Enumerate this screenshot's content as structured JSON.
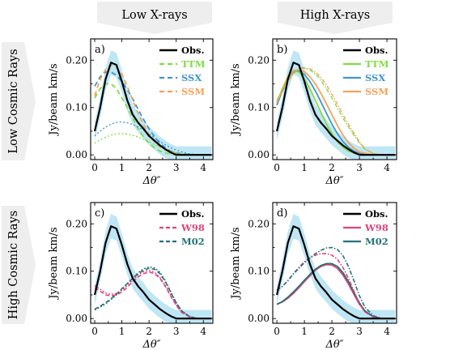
{
  "columns": [
    "Low X-rays",
    "High X-rays"
  ],
  "rows": [
    "Low Cosmic Rays",
    "High Cosmic Rays"
  ],
  "colors": {
    "band": "#bfe6f5",
    "obs": "#000000",
    "ttm": "#7ede3f",
    "ssx": "#3f97c8",
    "ssm": "#f5a25a",
    "w98": "#e0457a",
    "m02": "#23717a"
  },
  "chart_data": [
    {
      "type": "line",
      "panel": "a)",
      "ylabel": "Jy/beam km/s",
      "xlabel": "Δθ″",
      "xlim": [
        -0.15,
        4.35
      ],
      "ylim": [
        -0.01,
        0.245
      ],
      "xticks": [
        "0",
        "1",
        "2",
        "3",
        "4"
      ],
      "yticks": [
        "0.00",
        "0.10",
        "0.20"
      ],
      "legend": [
        "Obs.",
        "TTM",
        "SSX",
        "SSM"
      ],
      "series": [
        {
          "name": "Obs.",
          "x": [
            0,
            0.2,
            0.4,
            0.6,
            0.8,
            1.0,
            1.2,
            1.4,
            1.6,
            1.8,
            2.0,
            2.2,
            2.4,
            2.6,
            2.8,
            3.0,
            3.3,
            3.6,
            4.0,
            4.3
          ],
          "y": [
            0.05,
            0.1,
            0.16,
            0.195,
            0.19,
            0.155,
            0.115,
            0.085,
            0.068,
            0.055,
            0.04,
            0.03,
            0.02,
            0.012,
            0.005,
            0.0,
            0.0,
            0.0,
            0.0,
            0.0
          ]
        },
        {
          "name": "TTM",
          "x": [
            0,
            0.2,
            0.4,
            0.6,
            0.8,
            1.0,
            1.2,
            1.4,
            1.6,
            1.8,
            2.0,
            2.2,
            2.4,
            2.6,
            2.8,
            3.0,
            3.4,
            3.8,
            4.3
          ],
          "y": [
            0.12,
            0.14,
            0.15,
            0.15,
            0.14,
            0.12,
            0.1,
            0.078,
            0.055,
            0.038,
            0.025,
            0.015,
            0.008,
            0.004,
            0.002,
            0.0,
            0.0,
            0.0,
            0.0
          ]
        },
        {
          "name": "SSX",
          "x": [
            0,
            0.2,
            0.4,
            0.6,
            0.8,
            1.0,
            1.2,
            1.4,
            1.6,
            1.8,
            2.0,
            2.2,
            2.4,
            2.6,
            2.8,
            3.0,
            3.4,
            3.8,
            4.3
          ],
          "y": [
            0.145,
            0.165,
            0.175,
            0.175,
            0.168,
            0.155,
            0.138,
            0.118,
            0.096,
            0.075,
            0.055,
            0.038,
            0.025,
            0.015,
            0.008,
            0.004,
            0.001,
            0.0,
            0.0
          ]
        },
        {
          "name": "SSM",
          "x": [
            0,
            0.2,
            0.4,
            0.6,
            0.8,
            1.0,
            1.2,
            1.4,
            1.6,
            1.8,
            2.0,
            2.2,
            2.4,
            2.6,
            2.8,
            3.0,
            3.4,
            3.8,
            4.3
          ],
          "y": [
            0.125,
            0.16,
            0.18,
            0.19,
            0.185,
            0.17,
            0.145,
            0.115,
            0.088,
            0.063,
            0.043,
            0.028,
            0.017,
            0.01,
            0.006,
            0.003,
            0.0,
            0.0,
            0.0
          ]
        },
        {
          "name": "",
          "x": [
            0,
            0.3,
            0.6,
            0.9,
            1.2,
            1.5,
            1.8,
            2.1,
            2.4,
            2.7,
            3.0,
            3.4,
            3.8,
            4.3
          ],
          "y": [
            0.04,
            0.055,
            0.065,
            0.07,
            0.068,
            0.062,
            0.052,
            0.04,
            0.028,
            0.018,
            0.01,
            0.003,
            0.0,
            0.0
          ]
        },
        {
          "name": "",
          "x": [
            0,
            0.3,
            0.6,
            0.9,
            1.2,
            1.5,
            1.8,
            2.1,
            2.4,
            2.7,
            3.0,
            3.4,
            3.8,
            4.3
          ],
          "y": [
            0.025,
            0.035,
            0.042,
            0.045,
            0.044,
            0.04,
            0.033,
            0.025,
            0.017,
            0.01,
            0.005,
            0.001,
            0.0,
            0.0
          ]
        }
      ]
    },
    {
      "type": "line",
      "panel": "b)",
      "ylabel": "Jy/beam km/s",
      "xlabel": "Δθ″",
      "xlim": [
        -0.15,
        4.35
      ],
      "ylim": [
        -0.01,
        0.245
      ],
      "xticks": [
        "0",
        "1",
        "2",
        "3",
        "4"
      ],
      "yticks": [
        "0.00",
        "0.10",
        "0.20"
      ],
      "legend": [
        "Obs.",
        "TTM",
        "SSX",
        "SSM"
      ],
      "series": [
        {
          "name": "Obs.",
          "x": [
            0,
            0.2,
            0.4,
            0.6,
            0.8,
            1.0,
            1.2,
            1.4,
            1.6,
            1.8,
            2.0,
            2.2,
            2.4,
            2.6,
            2.8,
            3.0,
            3.3,
            3.6,
            4.0,
            4.3
          ],
          "y": [
            0.05,
            0.1,
            0.16,
            0.195,
            0.19,
            0.155,
            0.115,
            0.085,
            0.068,
            0.055,
            0.04,
            0.03,
            0.02,
            0.012,
            0.005,
            0.0,
            0.0,
            0.0,
            0.0,
            0.0
          ]
        },
        {
          "name": "TTM",
          "x": [
            0,
            0.2,
            0.4,
            0.6,
            0.8,
            1.0,
            1.2,
            1.4,
            1.6,
            1.8,
            2.0,
            2.2,
            2.4,
            2.6,
            2.8,
            3.0,
            3.4,
            3.8,
            4.3
          ],
          "y": [
            0.11,
            0.14,
            0.165,
            0.178,
            0.175,
            0.16,
            0.14,
            0.115,
            0.09,
            0.065,
            0.045,
            0.028,
            0.016,
            0.008,
            0.004,
            0.002,
            0.0,
            0.0,
            0.0
          ]
        },
        {
          "name": "SSX",
          "x": [
            0,
            0.2,
            0.4,
            0.6,
            0.8,
            1.0,
            1.2,
            1.4,
            1.6,
            1.8,
            2.0,
            2.2,
            2.4,
            2.6,
            2.8,
            3.0,
            3.4,
            3.8,
            4.3
          ],
          "y": [
            0.105,
            0.135,
            0.16,
            0.175,
            0.178,
            0.17,
            0.155,
            0.135,
            0.112,
            0.088,
            0.065,
            0.045,
            0.028,
            0.016,
            0.008,
            0.003,
            0.0,
            0.0,
            0.0
          ]
        },
        {
          "name": "SSM",
          "x": [
            0,
            0.2,
            0.4,
            0.6,
            0.8,
            1.0,
            1.2,
            1.4,
            1.6,
            1.8,
            2.0,
            2.2,
            2.4,
            2.6,
            2.8,
            3.0,
            3.4,
            3.8,
            4.3
          ],
          "y": [
            0.11,
            0.14,
            0.163,
            0.178,
            0.18,
            0.176,
            0.165,
            0.15,
            0.13,
            0.108,
            0.085,
            0.062,
            0.042,
            0.026,
            0.014,
            0.006,
            0.001,
            0.0,
            0.0
          ]
        },
        {
          "name": "",
          "x": [
            0,
            0.3,
            0.6,
            0.9,
            1.2,
            1.5,
            1.8,
            2.1,
            2.4,
            2.7,
            3.0,
            3.2,
            3.5,
            3.8,
            4.3
          ],
          "y": [
            0.115,
            0.15,
            0.175,
            0.185,
            0.18,
            0.165,
            0.14,
            0.11,
            0.078,
            0.05,
            0.025,
            0.012,
            0.003,
            0.0,
            0.0
          ]
        },
        {
          "name": "",
          "x": [
            0,
            0.3,
            0.6,
            0.9,
            1.2,
            1.5,
            1.8,
            2.1,
            2.4,
            2.7,
            3.0,
            3.2,
            3.5,
            3.8,
            4.3
          ],
          "y": [
            0.11,
            0.145,
            0.172,
            0.183,
            0.182,
            0.17,
            0.148,
            0.118,
            0.085,
            0.055,
            0.028,
            0.013,
            0.003,
            0.0,
            0.0
          ]
        }
      ]
    },
    {
      "type": "line",
      "panel": "c)",
      "ylabel": "Jy/beam km/s",
      "xlabel": "Δθ″",
      "xlim": [
        -0.15,
        4.35
      ],
      "ylim": [
        -0.01,
        0.245
      ],
      "xticks": [
        "0",
        "1",
        "2",
        "3",
        "4"
      ],
      "yticks": [
        "0.00",
        "0.10",
        "0.20"
      ],
      "legend": [
        "Obs.",
        "W98",
        "M02"
      ],
      "series": [
        {
          "name": "Obs.",
          "x": [
            0,
            0.2,
            0.4,
            0.6,
            0.8,
            1.0,
            1.2,
            1.4,
            1.6,
            1.8,
            2.0,
            2.2,
            2.4,
            2.6,
            2.8,
            3.0,
            3.3,
            3.6,
            4.0,
            4.3
          ],
          "y": [
            0.05,
            0.1,
            0.16,
            0.195,
            0.19,
            0.155,
            0.115,
            0.085,
            0.068,
            0.055,
            0.04,
            0.03,
            0.02,
            0.012,
            0.005,
            0.0,
            0.0,
            0.0,
            0.0,
            0.0
          ]
        },
        {
          "name": "W98",
          "x": [
            0,
            0.2,
            0.4,
            0.6,
            0.8,
            1.0,
            1.2,
            1.4,
            1.6,
            1.8,
            2.0,
            2.2,
            2.4,
            2.6,
            2.8,
            3.0,
            3.2,
            3.5,
            3.8,
            4.3
          ],
          "y": [
            0.065,
            0.058,
            0.05,
            0.048,
            0.05,
            0.056,
            0.066,
            0.078,
            0.088,
            0.095,
            0.098,
            0.095,
            0.085,
            0.068,
            0.047,
            0.028,
            0.013,
            0.003,
            0.0,
            0.0
          ]
        },
        {
          "name": "M02",
          "x": [
            0,
            0.2,
            0.4,
            0.6,
            0.8,
            1.0,
            1.2,
            1.4,
            1.6,
            1.8,
            2.0,
            2.2,
            2.4,
            2.6,
            2.8,
            3.0,
            3.2,
            3.5,
            3.8,
            4.3
          ],
          "y": [
            0.02,
            0.026,
            0.033,
            0.042,
            0.052,
            0.063,
            0.074,
            0.085,
            0.095,
            0.102,
            0.106,
            0.104,
            0.095,
            0.078,
            0.055,
            0.033,
            0.016,
            0.004,
            0.0,
            0.0
          ]
        },
        {
          "name": "",
          "x": [
            0,
            0.2,
            0.4,
            0.6,
            0.8,
            1.0,
            1.2,
            1.4,
            1.6,
            1.8,
            2.0,
            2.2,
            2.4,
            2.6,
            2.8,
            3.0,
            3.2,
            3.5,
            3.8,
            4.3
          ],
          "y": [
            0.07,
            0.062,
            0.054,
            0.051,
            0.053,
            0.06,
            0.07,
            0.082,
            0.092,
            0.099,
            0.101,
            0.098,
            0.087,
            0.07,
            0.049,
            0.029,
            0.014,
            0.004,
            0.0,
            0.0
          ]
        },
        {
          "name": "",
          "x": [
            0,
            0.2,
            0.4,
            0.6,
            0.8,
            1.0,
            1.2,
            1.4,
            1.6,
            1.8,
            2.0,
            2.2,
            2.4,
            2.6,
            2.8,
            3.0,
            3.2,
            3.5,
            3.8,
            4.3
          ],
          "y": [
            0.018,
            0.024,
            0.031,
            0.04,
            0.05,
            0.062,
            0.074,
            0.086,
            0.097,
            0.105,
            0.109,
            0.107,
            0.098,
            0.08,
            0.057,
            0.034,
            0.017,
            0.004,
            0.0,
            0.0
          ]
        }
      ]
    },
    {
      "type": "line",
      "panel": "d)",
      "ylabel": "Jy/beam km/s",
      "xlabel": "Δθ″",
      "xlim": [
        -0.15,
        4.35
      ],
      "ylim": [
        -0.01,
        0.245
      ],
      "xticks": [
        "0",
        "1",
        "2",
        "3",
        "4"
      ],
      "yticks": [
        "0.00",
        "0.10",
        "0.20"
      ],
      "legend": [
        "Obs.",
        "W98",
        "M02"
      ],
      "series": [
        {
          "name": "Obs.",
          "x": [
            0,
            0.2,
            0.4,
            0.6,
            0.8,
            1.0,
            1.2,
            1.4,
            1.6,
            1.8,
            2.0,
            2.2,
            2.4,
            2.6,
            2.8,
            3.0,
            3.3,
            3.6,
            4.0,
            4.3
          ],
          "y": [
            0.05,
            0.1,
            0.16,
            0.195,
            0.19,
            0.155,
            0.115,
            0.085,
            0.068,
            0.055,
            0.04,
            0.03,
            0.02,
            0.012,
            0.005,
            0.0,
            0.0,
            0.0,
            0.0,
            0.0
          ]
        },
        {
          "name": "W98",
          "x": [
            0,
            0.2,
            0.4,
            0.6,
            0.8,
            1.0,
            1.2,
            1.4,
            1.6,
            1.8,
            2.0,
            2.2,
            2.4,
            2.6,
            2.8,
            3.0,
            3.2,
            3.5,
            3.8,
            4.3
          ],
          "y": [
            0.03,
            0.035,
            0.043,
            0.053,
            0.065,
            0.078,
            0.09,
            0.102,
            0.11,
            0.114,
            0.113,
            0.106,
            0.092,
            0.073,
            0.051,
            0.03,
            0.015,
            0.004,
            0.0,
            0.0
          ]
        },
        {
          "name": "M02",
          "x": [
            0,
            0.2,
            0.4,
            0.6,
            0.8,
            1.0,
            1.2,
            1.4,
            1.6,
            1.8,
            2.0,
            2.2,
            2.4,
            2.6,
            2.8,
            3.0,
            3.2,
            3.5,
            3.8,
            4.3
          ],
          "y": [
            0.03,
            0.036,
            0.045,
            0.056,
            0.068,
            0.081,
            0.093,
            0.104,
            0.112,
            0.116,
            0.116,
            0.11,
            0.097,
            0.078,
            0.055,
            0.033,
            0.016,
            0.004,
            0.0,
            0.0
          ]
        },
        {
          "name": "",
          "x": [
            0,
            0.2,
            0.4,
            0.6,
            0.8,
            1.0,
            1.2,
            1.4,
            1.6,
            1.8,
            2.0,
            2.2,
            2.4,
            2.6,
            2.8,
            3.0,
            3.2,
            3.5,
            3.8,
            4.3
          ],
          "y": [
            0.06,
            0.068,
            0.08,
            0.095,
            0.108,
            0.12,
            0.128,
            0.134,
            0.137,
            0.137,
            0.134,
            0.125,
            0.108,
            0.085,
            0.058,
            0.032,
            0.014,
            0.003,
            0.0,
            0.0
          ]
        },
        {
          "name": "",
          "x": [
            0,
            0.2,
            0.4,
            0.6,
            0.8,
            1.0,
            1.2,
            1.4,
            1.6,
            1.8,
            2.0,
            2.2,
            2.4,
            2.6,
            2.8,
            3.0,
            3.2,
            3.5,
            3.8,
            4.3
          ],
          "y": [
            0.06,
            0.068,
            0.08,
            0.094,
            0.106,
            0.118,
            0.128,
            0.137,
            0.144,
            0.149,
            0.15,
            0.146,
            0.133,
            0.11,
            0.08,
            0.048,
            0.024,
            0.006,
            0.0,
            0.0
          ]
        }
      ]
    }
  ]
}
